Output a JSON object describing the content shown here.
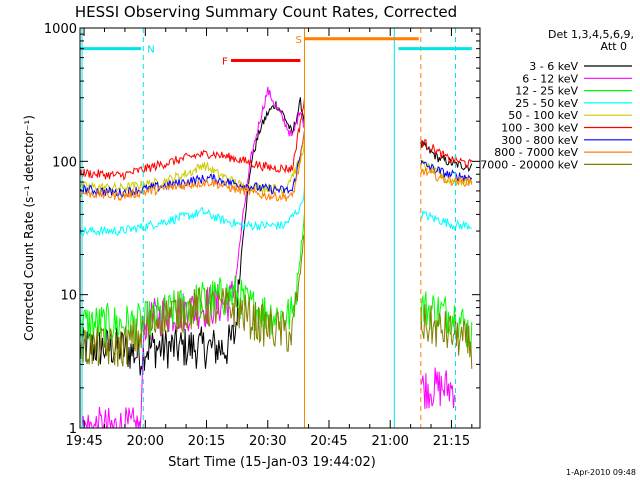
{
  "chart_data": {
    "type": "line",
    "title": "HESSI Observing Summary Count Rates, Corrected",
    "xlabel": "Start Time (15-Jan-03 19:44:02)",
    "ylabel": "Corrected Count Rate (s⁻¹ detector⁻¹)",
    "yscale": "log",
    "ylim": [
      1,
      1000
    ],
    "xlim_minutes": [
      0,
      98
    ],
    "x_ticks": [
      "19:45",
      "20:00",
      "20:15",
      "20:30",
      "20:45",
      "21:00",
      "21:15"
    ],
    "y_ticks": [
      "1",
      "10",
      "100",
      "1000"
    ],
    "legend_title": [
      "Det 1,3,4,5,6,9,",
      "Att 0"
    ],
    "legend_placement": "right",
    "timestamp": "1-Apr-2010 09:48",
    "annotations": {
      "bars": [
        {
          "label": "N",
          "color": "#00e5e5",
          "y": 700,
          "segments": [
            [
              0,
              15
            ],
            [
              78,
              96
            ]
          ]
        },
        {
          "label": "F",
          "color": "#ff0000",
          "y": 570,
          "segments": [
            [
              37,
              54
            ]
          ]
        },
        {
          "label": "S",
          "color": "#ff8000",
          "y": 830,
          "segments": [
            [
              55,
              83
            ]
          ]
        }
      ],
      "vlines": [
        {
          "t": 0.5,
          "color": "#00e5e5",
          "style": "solid"
        },
        {
          "t": 15.5,
          "color": "#00e5e5",
          "style": "dashed"
        },
        {
          "t": 55,
          "color": "#ff8000",
          "style": "solid"
        },
        {
          "t": 77,
          "color": "#00e5e5",
          "style": "solid"
        },
        {
          "t": 83.5,
          "color": "#ff8000",
          "style": "dashed"
        },
        {
          "t": 92,
          "color": "#00e5e5",
          "style": "dashed"
        }
      ]
    },
    "gaps": [
      [
        55,
        83.5
      ]
    ],
    "series": [
      {
        "name": "3 - 6 keV",
        "color": "#000000",
        "points": [
          [
            0,
            4
          ],
          [
            10,
            4
          ],
          [
            15,
            3.5
          ],
          [
            16,
            4
          ],
          [
            30,
            4
          ],
          [
            36,
            4
          ],
          [
            38,
            5
          ],
          [
            40,
            30
          ],
          [
            42,
            100
          ],
          [
            44,
            170
          ],
          [
            46,
            230
          ],
          [
            48,
            270
          ],
          [
            50,
            220
          ],
          [
            52,
            160
          ],
          [
            54,
            280
          ],
          [
            55,
            200
          ],
          [
            84,
            130
          ],
          [
            88,
            105
          ],
          [
            92,
            95
          ],
          [
            96,
            90
          ]
        ]
      },
      {
        "name": "6 - 12 keV",
        "color": "#ff00ff",
        "points": [
          [
            0,
            1
          ],
          [
            15,
            1
          ],
          [
            15.5,
            6
          ],
          [
            20,
            7
          ],
          [
            30,
            8
          ],
          [
            37,
            9
          ],
          [
            38,
            12
          ],
          [
            40,
            40
          ],
          [
            42,
            110
          ],
          [
            44,
            200
          ],
          [
            46,
            340
          ],
          [
            48,
            260
          ],
          [
            50,
            200
          ],
          [
            52,
            150
          ],
          [
            54,
            250
          ],
          [
            55,
            180
          ],
          [
            84,
            2
          ],
          [
            92,
            2
          ]
        ]
      },
      {
        "name": "12 - 25 keV",
        "color": "#00ff00",
        "points": [
          [
            0,
            6
          ],
          [
            15,
            6
          ],
          [
            20,
            7
          ],
          [
            30,
            9
          ],
          [
            38,
            10
          ],
          [
            42,
            8
          ],
          [
            48,
            7
          ],
          [
            52,
            7
          ],
          [
            54,
            20
          ],
          [
            55,
            40
          ],
          [
            84,
            8
          ],
          [
            92,
            7
          ],
          [
            96,
            5
          ]
        ]
      },
      {
        "name": "25 - 50 keV",
        "color": "#00ffff",
        "points": [
          [
            0,
            30
          ],
          [
            10,
            30
          ],
          [
            15,
            32
          ],
          [
            20,
            35
          ],
          [
            28,
            40
          ],
          [
            30,
            42
          ],
          [
            34,
            37
          ],
          [
            40,
            33
          ],
          [
            50,
            33
          ],
          [
            54,
            45
          ],
          [
            55,
            60
          ],
          [
            84,
            40
          ],
          [
            92,
            33
          ],
          [
            96,
            33
          ]
        ]
      },
      {
        "name": "50 - 100 keV",
        "color": "#cccc00",
        "points": [
          [
            0,
            65
          ],
          [
            10,
            63
          ],
          [
            20,
            70
          ],
          [
            28,
            85
          ],
          [
            30,
            95
          ],
          [
            34,
            80
          ],
          [
            40,
            65
          ],
          [
            50,
            62
          ],
          [
            54,
            100
          ],
          [
            55,
            140
          ],
          [
            84,
            95
          ],
          [
            90,
            72
          ],
          [
            96,
            70
          ]
        ]
      },
      {
        "name": "100 - 300 keV",
        "color": "#ff0000",
        "points": [
          [
            0,
            82
          ],
          [
            10,
            78
          ],
          [
            20,
            95
          ],
          [
            28,
            110
          ],
          [
            32,
            115
          ],
          [
            38,
            105
          ],
          [
            46,
            90
          ],
          [
            52,
            88
          ],
          [
            54,
            200
          ],
          [
            55,
            280
          ],
          [
            84,
            140
          ],
          [
            90,
            105
          ],
          [
            96,
            95
          ]
        ]
      },
      {
        "name": "300 - 800 keV",
        "color": "#0000ff",
        "points": [
          [
            0,
            62
          ],
          [
            10,
            58
          ],
          [
            20,
            65
          ],
          [
            28,
            72
          ],
          [
            32,
            75
          ],
          [
            38,
            68
          ],
          [
            46,
            62
          ],
          [
            52,
            60
          ],
          [
            54,
            110
          ],
          [
            55,
            180
          ],
          [
            84,
            95
          ],
          [
            90,
            80
          ],
          [
            96,
            75
          ]
        ]
      },
      {
        "name": "800 - 7000 keV",
        "color": "#ff8000",
        "points": [
          [
            0,
            58
          ],
          [
            10,
            55
          ],
          [
            20,
            62
          ],
          [
            28,
            68
          ],
          [
            32,
            70
          ],
          [
            38,
            62
          ],
          [
            46,
            55
          ],
          [
            52,
            54
          ],
          [
            54,
            100
          ],
          [
            55,
            160
          ],
          [
            84,
            85
          ],
          [
            90,
            72
          ],
          [
            96,
            70
          ]
        ]
      },
      {
        "name": "7000 - 20000 keV",
        "color": "#808000",
        "points": [
          [
            0,
            4
          ],
          [
            10,
            4
          ],
          [
            15,
            5
          ],
          [
            20,
            7
          ],
          [
            30,
            8
          ],
          [
            38,
            8
          ],
          [
            44,
            6
          ],
          [
            52,
            5
          ],
          [
            54,
            15
          ],
          [
            55,
            30
          ],
          [
            84,
            6
          ],
          [
            92,
            5
          ],
          [
            96,
            4
          ]
        ]
      }
    ]
  }
}
